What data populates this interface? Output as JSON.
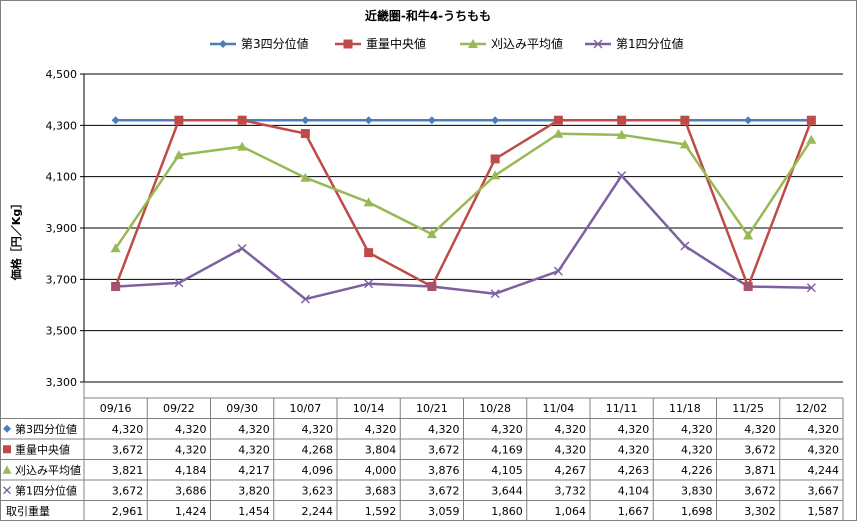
{
  "chart_data": {
    "type": "line",
    "title": "近畿圏-和牛4-うちもも",
    "ylabel": "価格［円／Kg］",
    "ylim": [
      3300,
      4500
    ],
    "yticks": [
      3300,
      3500,
      3700,
      3900,
      4100,
      4300,
      4500
    ],
    "ytick_labels": [
      "3,300",
      "3,500",
      "3,700",
      "3,900",
      "4,100",
      "4,300",
      "4,500"
    ],
    "grid": true,
    "legend_position": "top",
    "categories": [
      "09/16",
      "09/22",
      "09/30",
      "10/07",
      "10/14",
      "10/21",
      "10/28",
      "11/04",
      "11/11",
      "11/18",
      "11/25",
      "12/02"
    ],
    "series": [
      {
        "name": "第3四分位値",
        "color": "#4a7ebb",
        "marker": "diamond",
        "values": [
          4320,
          4320,
          4320,
          4320,
          4320,
          4320,
          4320,
          4320,
          4320,
          4320,
          4320,
          4320
        ],
        "labels": [
          "4,320",
          "4,320",
          "4,320",
          "4,320",
          "4,320",
          "4,320",
          "4,320",
          "4,320",
          "4,320",
          "4,320",
          "4,320",
          "4,320"
        ]
      },
      {
        "name": "重量中央値",
        "color": "#be4b48",
        "marker": "square",
        "values": [
          3672,
          4320,
          4320,
          4268,
          3804,
          3672,
          4169,
          4320,
          4320,
          4320,
          3672,
          4320
        ],
        "labels": [
          "3,672",
          "4,320",
          "4,320",
          "4,268",
          "3,804",
          "3,672",
          "4,169",
          "4,320",
          "4,320",
          "4,320",
          "3,672",
          "4,320"
        ]
      },
      {
        "name": "刈込み平均値",
        "color": "#98b954",
        "marker": "triangle",
        "values": [
          3821,
          4184,
          4217,
          4096,
          4000,
          3876,
          4105,
          4267,
          4263,
          4226,
          3871,
          4244
        ],
        "labels": [
          "3,821",
          "4,184",
          "4,217",
          "4,096",
          "4,000",
          "3,876",
          "4,105",
          "4,267",
          "4,263",
          "4,226",
          "3,871",
          "4,244"
        ]
      },
      {
        "name": "第1四分位値",
        "color": "#7d60a0",
        "marker": "x",
        "values": [
          3672,
          3686,
          3820,
          3623,
          3683,
          3672,
          3644,
          3732,
          4104,
          3830,
          3672,
          3667
        ],
        "labels": [
          "3,672",
          "3,686",
          "3,820",
          "3,623",
          "3,683",
          "3,672",
          "3,644",
          "3,732",
          "4,104",
          "3,830",
          "3,672",
          "3,667"
        ]
      }
    ],
    "extra_rows": [
      {
        "name": "取引重量",
        "labels": [
          "2,961",
          "1,424",
          "1,454",
          "2,244",
          "1,592",
          "3,059",
          "1,860",
          "1,064",
          "1,667",
          "1,698",
          "3,302",
          "1,587"
        ]
      }
    ]
  }
}
